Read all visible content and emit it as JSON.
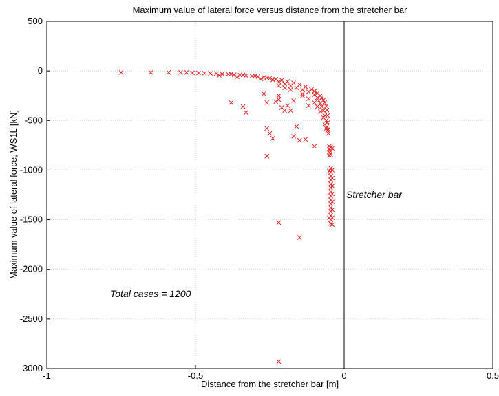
{
  "chart_data": {
    "type": "scatter",
    "title": "Maximum value of lateral force versus distance from the stretcher bar",
    "xlabel": "Distance from the stretcher bar [m]",
    "ylabel": "Maximum value of lateral force, WS1L [kN]",
    "xlim": [
      -1,
      0.5
    ],
    "ylim": [
      -3000,
      500
    ],
    "xticks": [
      -1,
      -0.5,
      0,
      0.5
    ],
    "xtick_labels": [
      "-1",
      "-0.5",
      "0",
      "0.5"
    ],
    "yticks": [
      500,
      0,
      -500,
      -1000,
      -1500,
      -2000,
      -2500,
      -3000
    ],
    "ytick_labels": [
      "500",
      "0",
      "-500",
      "-1000",
      "-1500",
      "-2000",
      "-2500",
      "-3000"
    ],
    "grid": true,
    "marker": "x",
    "colors": {
      "points": "#e02020",
      "axes": "#000000",
      "grid": "#d0d0d0"
    },
    "reference_line": {
      "x": 0,
      "label": "Stretcher bar"
    },
    "annotation": "Total cases = 1200",
    "series": [
      {
        "points": [
          [
            -0.75,
            -15
          ],
          [
            -0.65,
            -15
          ],
          [
            -0.59,
            -15
          ],
          [
            -0.55,
            -15
          ],
          [
            -0.53,
            -15
          ],
          [
            -0.51,
            -20
          ],
          [
            -0.49,
            -20
          ],
          [
            -0.47,
            -22
          ],
          [
            -0.45,
            -24
          ],
          [
            -0.43,
            -26
          ],
          [
            -0.41,
            -30
          ],
          [
            -0.39,
            -33
          ],
          [
            -0.37,
            -37
          ],
          [
            -0.35,
            -42
          ],
          [
            -0.33,
            -47
          ],
          [
            -0.31,
            -52
          ],
          [
            -0.29,
            -58
          ],
          [
            -0.27,
            -65
          ],
          [
            -0.25,
            -73
          ],
          [
            -0.23,
            -82
          ],
          [
            -0.21,
            -93
          ],
          [
            -0.19,
            -106
          ],
          [
            -0.17,
            -120
          ],
          [
            -0.15,
            -138
          ],
          [
            -0.13,
            -160
          ],
          [
            -0.11,
            -188
          ],
          [
            -0.1,
            -205
          ],
          [
            -0.09,
            -225
          ],
          [
            -0.08,
            -250
          ],
          [
            -0.075,
            -270
          ],
          [
            -0.07,
            -295
          ],
          [
            -0.065,
            -320
          ],
          [
            -0.06,
            -355
          ],
          [
            -0.058,
            -395
          ],
          [
            -0.056,
            -450
          ],
          [
            -0.055,
            -520
          ],
          [
            -0.054,
            -590
          ],
          [
            -0.053,
            -630
          ],
          [
            -0.38,
            -30
          ],
          [
            -0.34,
            -40
          ],
          [
            -0.3,
            -50
          ],
          [
            -0.26,
            -70
          ],
          [
            -0.24,
            -90
          ],
          [
            -0.22,
            -110
          ],
          [
            -0.2,
            -130
          ],
          [
            -0.18,
            -150
          ],
          [
            -0.16,
            -170
          ],
          [
            -0.14,
            -190
          ],
          [
            -0.12,
            -210
          ],
          [
            -0.1,
            -240
          ],
          [
            -0.09,
            -270
          ],
          [
            -0.085,
            -300
          ],
          [
            -0.08,
            -330
          ],
          [
            -0.075,
            -360
          ],
          [
            -0.07,
            -400
          ],
          [
            -0.065,
            -450
          ],
          [
            -0.06,
            -500
          ],
          [
            -0.058,
            -560
          ],
          [
            -0.056,
            -600
          ],
          [
            -0.42,
            -45
          ],
          [
            -0.36,
            -60
          ],
          [
            -0.28,
            -80
          ],
          [
            -0.22,
            -150
          ],
          [
            -0.18,
            -190
          ],
          [
            -0.14,
            -230
          ],
          [
            -0.12,
            -280
          ],
          [
            -0.1,
            -320
          ],
          [
            -0.09,
            -360
          ],
          [
            -0.08,
            -410
          ],
          [
            -0.07,
            -470
          ],
          [
            -0.065,
            -540
          ],
          [
            -0.06,
            -580
          ],
          [
            -0.05,
            -760
          ],
          [
            -0.05,
            -790
          ],
          [
            -0.05,
            -820
          ],
          [
            -0.05,
            -850
          ],
          [
            -0.045,
            -770
          ],
          [
            -0.045,
            -810
          ],
          [
            -0.045,
            -845
          ],
          [
            -0.04,
            -780
          ],
          [
            -0.045,
            -980
          ],
          [
            -0.045,
            -1020
          ],
          [
            -0.045,
            -1060
          ],
          [
            -0.045,
            -1100
          ],
          [
            -0.045,
            -1140
          ],
          [
            -0.045,
            -1180
          ],
          [
            -0.045,
            -1220
          ],
          [
            -0.045,
            -1260
          ],
          [
            -0.045,
            -1300
          ],
          [
            -0.045,
            -1340
          ],
          [
            -0.045,
            -1380
          ],
          [
            -0.045,
            -1420
          ],
          [
            -0.045,
            -1460
          ],
          [
            -0.045,
            -1500
          ],
          [
            -0.045,
            -1540
          ],
          [
            -0.04,
            -1000
          ],
          [
            -0.04,
            -1080
          ],
          [
            -0.04,
            -1160
          ],
          [
            -0.04,
            -1240
          ],
          [
            -0.04,
            -1320
          ],
          [
            -0.04,
            -1400
          ],
          [
            -0.04,
            -1480
          ],
          [
            -0.04,
            -1550
          ],
          [
            -0.05,
            -1010
          ],
          [
            -0.05,
            -1480
          ],
          [
            -0.38,
            -320
          ],
          [
            -0.34,
            -360
          ],
          [
            -0.33,
            -420
          ],
          [
            -0.27,
            -230
          ],
          [
            -0.26,
            -320
          ],
          [
            -0.26,
            -580
          ],
          [
            -0.25,
            -630
          ],
          [
            -0.24,
            -680
          ],
          [
            -0.26,
            -860
          ],
          [
            -0.23,
            -310
          ],
          [
            -0.22,
            -250
          ],
          [
            -0.22,
            -290
          ],
          [
            -0.21,
            -370
          ],
          [
            -0.2,
            -400
          ],
          [
            -0.19,
            -350
          ],
          [
            -0.18,
            -400
          ],
          [
            -0.17,
            -660
          ],
          [
            -0.16,
            -560
          ],
          [
            -0.15,
            -700
          ],
          [
            -0.13,
            -690
          ],
          [
            -0.1,
            -760
          ],
          [
            -0.22,
            -1530
          ],
          [
            -0.15,
            -1680
          ],
          [
            -0.22,
            -2930
          ],
          [
            -0.2,
            -170
          ],
          [
            -0.17,
            -300
          ],
          [
            -0.14,
            -250
          ],
          [
            -0.12,
            -350
          ]
        ]
      }
    ]
  }
}
